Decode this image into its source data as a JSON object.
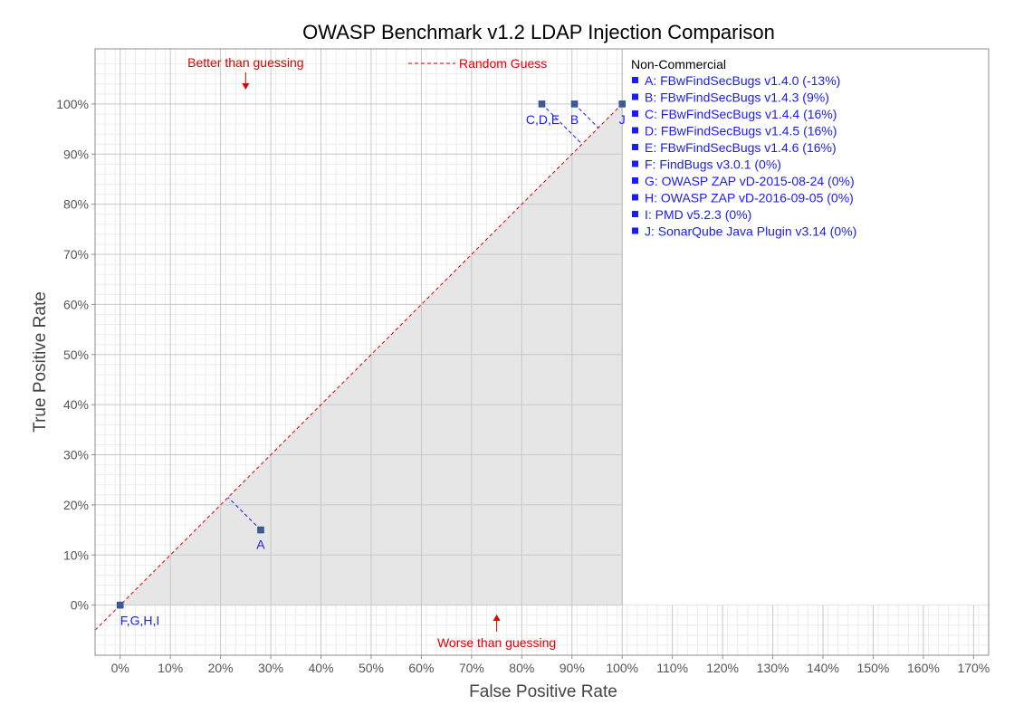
{
  "chart_data": {
    "type": "scatter",
    "title": "OWASP Benchmark v1.2 LDAP Injection Comparison",
    "xlabel": "False Positive Rate",
    "ylabel": "True Positive Rate",
    "xlim": [
      -5,
      173
    ],
    "ylim": [
      -10,
      111
    ],
    "x_ticks": [
      0,
      10,
      20,
      30,
      40,
      50,
      60,
      70,
      80,
      90,
      100,
      110,
      120,
      130,
      140,
      150,
      160,
      170
    ],
    "y_ticks": [
      0,
      10,
      20,
      30,
      40,
      50,
      60,
      70,
      80,
      90,
      100
    ],
    "tick_suffix": "%",
    "grid": true,
    "legend_title": "Non-Commercial",
    "legend": [
      "A: FBwFindSecBugs v1.4.0 (-13%)",
      "B: FBwFindSecBugs v1.4.3 (9%)",
      "C: FBwFindSecBugs v1.4.4 (16%)",
      "D: FBwFindSecBugs v1.4.5 (16%)",
      "E: FBwFindSecBugs v1.4.6 (16%)",
      "F: FindBugs v3.0.1 (0%)",
      "G: OWASP ZAP vD-2015-08-24 (0%)",
      "H: OWASP ZAP vD-2016-09-05 (0%)",
      "I:  PMD v5.2.3 (0%)",
      "J: SonarQube Java Plugin v3.14 (0%)"
    ],
    "random_guess_label": "Random Guess",
    "annotations": {
      "better": "Better than guessing",
      "worse": "Worse than guessing"
    },
    "points": [
      {
        "label": "A",
        "x": 28,
        "y": 15
      },
      {
        "label": "C,D,E",
        "x": 84,
        "y": 100
      },
      {
        "label": "B",
        "x": 90.5,
        "y": 100
      },
      {
        "label": "J",
        "x": 100,
        "y": 100
      },
      {
        "label": "F,G,H,I",
        "x": 0,
        "y": 0
      }
    ],
    "colors": {
      "point": "#3d5a99",
      "label": "#1a1aff",
      "guess": "#e00000",
      "fill": "#e6e6e6"
    }
  }
}
